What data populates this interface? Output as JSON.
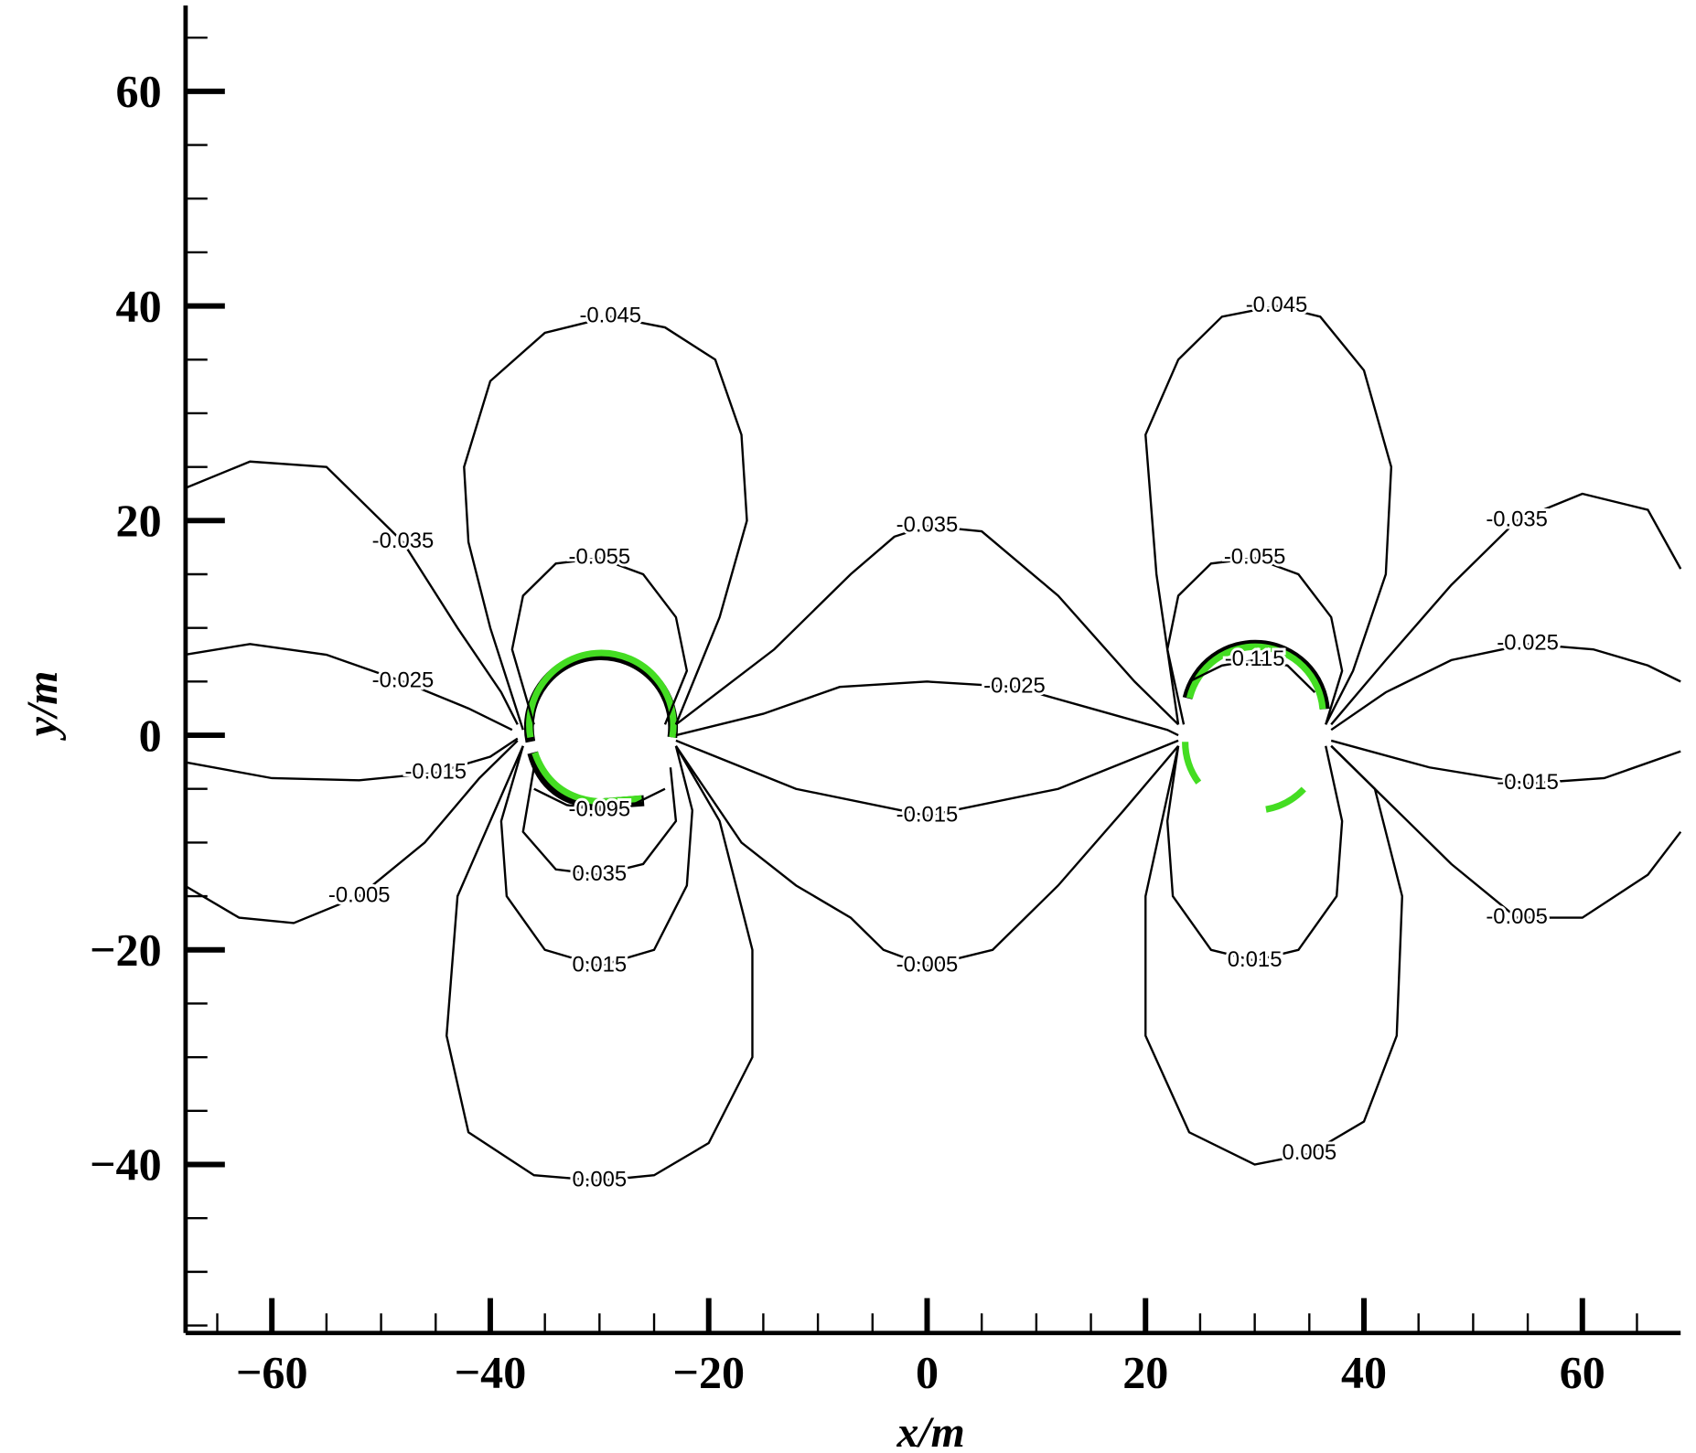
{
  "chart_data": {
    "type": "contour",
    "x_label": "x/m",
    "y_label": "y/m",
    "xlim": [
      -67.9,
      69
    ],
    "ylim": [
      -55.7,
      68
    ],
    "xticks": [
      {
        "value": -60,
        "label": "−60"
      },
      {
        "value": -40,
        "label": "−40"
      },
      {
        "value": -20,
        "label": "−20"
      },
      0,
      20,
      40,
      60
    ],
    "yticks": [
      {
        "value": -40,
        "label": "−40"
      },
      {
        "value": -20,
        "label": "−20"
      },
      0,
      20,
      40,
      60
    ],
    "x_minor_ticks": [
      -65,
      -55,
      -50,
      -45,
      -35,
      -30,
      -25,
      -15,
      -10,
      -5,
      5,
      10,
      15,
      25,
      30,
      35,
      45,
      50,
      55,
      65
    ],
    "y_minor_ticks": [
      -55,
      -50,
      -45,
      -35,
      -30,
      -25,
      -15,
      -10,
      -5,
      5,
      10,
      15,
      25,
      30,
      35,
      45,
      50,
      55,
      65
    ],
    "line_color": "#000000",
    "contours": [
      {
        "level": -0.045,
        "x": [
          -23,
          -19,
          -16.5,
          -17,
          -19.4,
          -24,
          -29,
          -35,
          -40,
          -42.4,
          -42,
          -40,
          -37
        ],
        "y": [
          1,
          11,
          20,
          28,
          35,
          38,
          39,
          37.5,
          33,
          25,
          18,
          10,
          0.5
        ]
      },
      {
        "level": -0.055,
        "x": [
          -24,
          -22,
          -23,
          -26,
          -30,
          -34,
          -37,
          -38,
          -36
        ],
        "y": [
          1,
          6,
          11,
          15,
          16.5,
          16,
          13,
          8,
          1
        ]
      },
      {
        "level": 0.015,
        "x": [
          -37,
          -39,
          -38.5,
          -35,
          -30,
          -25,
          -22,
          -21.5,
          -23
        ],
        "y": [
          -1,
          -8,
          -15,
          -20,
          -21.5,
          -20,
          -14,
          -7,
          -1
        ]
      },
      {
        "level": 0.005,
        "x": [
          -23,
          -19,
          -16,
          -16,
          -20,
          -25,
          -30,
          -36,
          -42,
          -44,
          -43,
          -37
        ],
        "y": [
          -1,
          -8,
          -20,
          -30,
          -38,
          -41,
          -41.5,
          -41,
          -37,
          -28,
          -15,
          -1
        ]
      },
      {
        "level": 0.035,
        "x": [
          -23.5,
          -23,
          -26,
          -30,
          -34,
          -37,
          -36
        ],
        "y": [
          -3,
          -8,
          -12,
          -13,
          -12.5,
          -9,
          -3
        ]
      },
      {
        "level": -0.005,
        "x": [
          -68,
          -63,
          -58,
          -52,
          -46,
          -41,
          -37.5
        ],
        "y": [
          -14,
          -17,
          -17.5,
          -15,
          -10,
          -4,
          -0.5
        ]
      },
      {
        "level": -0.015,
        "x": [
          -68,
          -60,
          -52,
          -45,
          -40,
          -37.5
        ],
        "y": [
          -2.5,
          -4,
          -4.2,
          -3.5,
          -2,
          -0.3
        ]
      },
      {
        "level": -0.025,
        "x": [
          -68,
          -62,
          -55,
          -48,
          -42,
          -38
        ],
        "y": [
          7.5,
          8.5,
          7.5,
          5,
          2.5,
          0.5
        ]
      },
      {
        "level": -0.035,
        "x": [
          -68,
          -62,
          -55,
          -48,
          -43,
          -39,
          -37.5
        ],
        "y": [
          23,
          25.5,
          25,
          18,
          10,
          4,
          1
        ]
      },
      {
        "level": -0.025,
        "x": [
          -23,
          -15,
          -8,
          0,
          8,
          15,
          22,
          23
        ],
        "y": [
          0,
          2,
          4.5,
          5,
          4.5,
          2.5,
          0.5,
          0
        ]
      },
      {
        "level": -0.035,
        "x": [
          -23,
          -14,
          -7,
          -3,
          0,
          5,
          12,
          19,
          23
        ],
        "y": [
          1,
          8,
          15,
          18.5,
          19.5,
          19,
          13,
          5,
          1
        ]
      },
      {
        "level": -0.005,
        "x": [
          -23,
          -17,
          -12,
          -7,
          -4,
          0,
          6,
          12,
          18,
          23
        ],
        "y": [
          -1,
          -10,
          -14,
          -17,
          -20,
          -21.5,
          -20,
          -14,
          -7,
          -1
        ]
      },
      {
        "level": -0.015,
        "x": [
          -23,
          -12,
          0,
          12,
          23
        ],
        "y": [
          -0.5,
          -5,
          -7.5,
          -5,
          -0.5
        ]
      },
      {
        "level": -0.045,
        "x": [
          36.5,
          39,
          42,
          42.5,
          40,
          36,
          32,
          27,
          23,
          20,
          21,
          23
        ],
        "y": [
          1,
          6,
          15,
          25,
          34,
          39,
          40,
          39,
          35,
          28,
          15,
          1
        ]
      },
      {
        "level": -0.055,
        "x": [
          23.5,
          22,
          23,
          26,
          30,
          34,
          37,
          38,
          36.5
        ],
        "y": [
          1,
          8,
          13,
          16,
          16.5,
          15,
          11,
          6,
          1
        ]
      },
      {
        "level": 0.005,
        "x": [
          23,
          20,
          20,
          24,
          30,
          35,
          40,
          43,
          43.5,
          41,
          37
        ],
        "y": [
          -1,
          -15,
          -28,
          -37,
          -40,
          -39,
          -36,
          -28,
          -15,
          -5,
          -1
        ]
      },
      {
        "level": 0.015,
        "x": [
          23,
          22,
          22.5,
          26,
          30,
          34,
          37.5,
          38,
          36.5
        ],
        "y": [
          -1,
          -8,
          -15,
          -20,
          -21,
          -20,
          -15,
          -8,
          -1
        ]
      },
      {
        "level": -0.025,
        "x": [
          37,
          42,
          48,
          55,
          61,
          66,
          69
        ],
        "y": [
          0.5,
          4,
          7,
          8.5,
          8,
          6.5,
          5
        ]
      },
      {
        "level": -0.035,
        "x": [
          37,
          42,
          48,
          54,
          60,
          66,
          69
        ],
        "y": [
          1,
          7,
          14,
          20,
          22.5,
          21,
          15.5
        ]
      },
      {
        "level": -0.005,
        "x": [
          37,
          42,
          48,
          54,
          60,
          66,
          69
        ],
        "y": [
          -1,
          -6,
          -12,
          -17,
          -17,
          -13,
          -9
        ]
      },
      {
        "level": -0.015,
        "x": [
          37,
          46,
          55,
          62,
          69
        ],
        "y": [
          -0.5,
          -3,
          -4.5,
          -4,
          -1.5
        ]
      },
      {
        "level": -0.115,
        "x": [
          24,
          27,
          30,
          33,
          35.5
        ],
        "y": [
          5,
          6.5,
          7,
          6.5,
          4
        ]
      },
      {
        "level": -0.095,
        "x": [
          -36,
          -33,
          -30,
          -27,
          -24
        ],
        "y": [
          -5,
          -6.5,
          -7,
          -6.5,
          -5
        ]
      }
    ]
  }
}
